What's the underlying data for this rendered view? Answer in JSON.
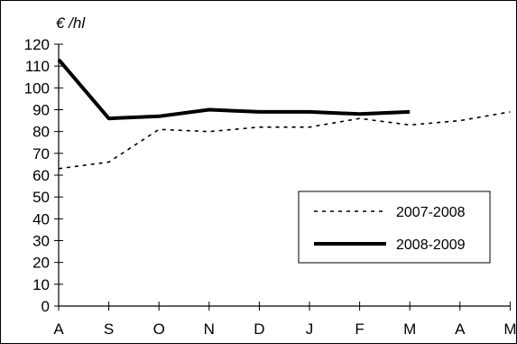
{
  "chart_data": {
    "type": "line",
    "title": "",
    "ylabel": "€ /hl",
    "xlabel": "",
    "categories": [
      "A",
      "S",
      "O",
      "N",
      "D",
      "J",
      "F",
      "M",
      "A",
      "M"
    ],
    "ylim": [
      0,
      120
    ],
    "yticks": [
      "0",
      "10",
      "20",
      "30",
      "40",
      "50",
      "60",
      "70",
      "80",
      "90",
      "100",
      "110",
      "120"
    ],
    "grid": false,
    "legend_position": "bottom-right",
    "series": [
      {
        "name": "2007-2008",
        "style": "dashed",
        "color": "#000000",
        "values": [
          63,
          66,
          81,
          80,
          82,
          82,
          86,
          83,
          85,
          89
        ]
      },
      {
        "name": "2008-2009",
        "style": "solid-thick",
        "color": "#000000",
        "values": [
          113,
          86,
          87,
          90,
          89,
          89,
          88,
          89,
          null,
          null
        ]
      }
    ]
  }
}
